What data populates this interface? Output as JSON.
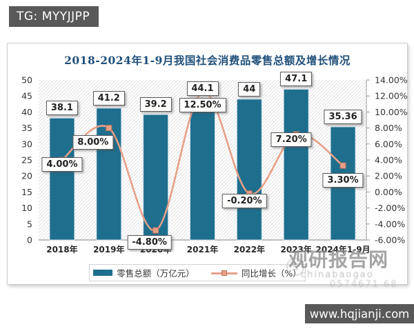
{
  "header": {
    "badge": "TG: MYYJJPP"
  },
  "footer": {
    "url": "www.hqjianji.com"
  },
  "watermark": {
    "brand": "观研报告网",
    "sub1": "chinabaogao",
    "sub2": "0574671 68"
  },
  "colors": {
    "bar": "#1e6e8e",
    "line": "#e7a088",
    "marker_border": "#b9765f",
    "title": "#1f4e79",
    "axis": "#9a9a9a",
    "hatch": "#e3e3e3"
  },
  "chart_data": {
    "type": "bar",
    "subtype": "bar-line-combo",
    "title": "2018-2024年1-9月我国社会消费品零售总额及增长情况",
    "categories": [
      "2018年",
      "2019年",
      "2020年",
      "2021年",
      "2022年",
      "2023年",
      "2024年1-9月"
    ],
    "series": [
      {
        "name": "零售总额（万亿元）",
        "type": "bar",
        "axis": "left",
        "values": [
          38.1,
          41.2,
          39.2,
          44.1,
          44,
          47.1,
          35.36
        ],
        "labels": [
          "38.1",
          "41.2",
          "39.2",
          "44.1",
          "44",
          "47.1",
          "35.36"
        ]
      },
      {
        "name": "同比增长（%）",
        "type": "line",
        "axis": "right",
        "values": [
          4.0,
          8.0,
          -4.8,
          12.5,
          -0.2,
          7.2,
          3.3
        ],
        "labels": [
          "4.00%",
          "8.00%",
          "-4.80%",
          "12.50%",
          "-0.20%",
          "7.20%",
          "3.30%"
        ]
      }
    ],
    "axes": {
      "left": {
        "min": 0,
        "max": 50,
        "ticks": [
          "50",
          "45",
          "40",
          "35",
          "30",
          "25",
          "20",
          "15",
          "10",
          "5",
          "0"
        ]
      },
      "right": {
        "min": -6,
        "max": 14,
        "ticks": [
          "14.00%",
          "12.00%",
          "10.00%",
          "8.00%",
          "6.00%",
          "4.00%",
          "2.00%",
          "0.00%",
          "-2.00%",
          "-4.00%",
          "-6.00%"
        ]
      }
    },
    "legend": [
      "零售总额（万亿元）",
      "同比增长（%）"
    ],
    "legend_position": "bottom",
    "grid": false,
    "plot_background": "diagonal-hatch"
  }
}
